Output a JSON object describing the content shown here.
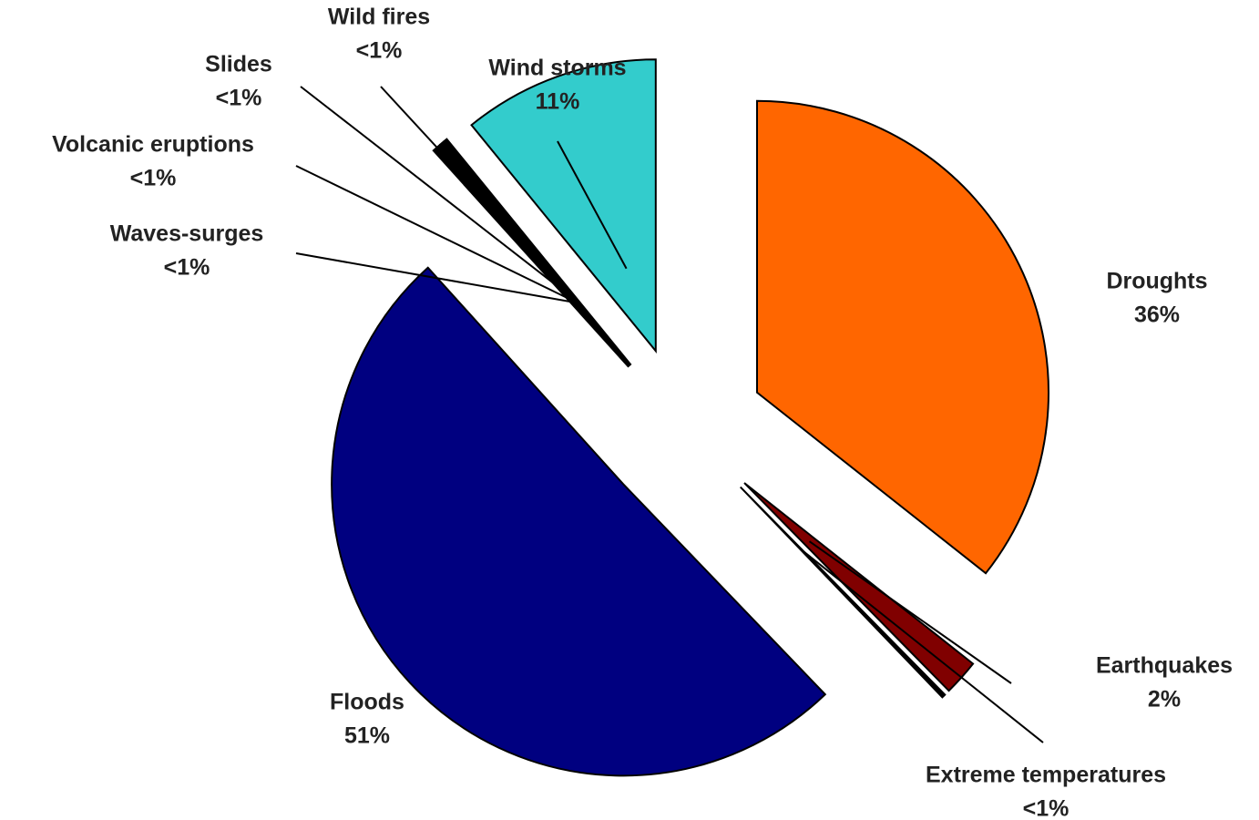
{
  "chart_data": {
    "type": "pie",
    "categories": [
      "Droughts",
      "Earthquakes",
      "Extreme temperatures",
      "Floods",
      "Waves-surges",
      "Volcanic eruptions",
      "Slides",
      "Wild fires",
      "Wind storms"
    ],
    "values": [
      36,
      2,
      0.2,
      51,
      0.2,
      0.2,
      0.2,
      0.2,
      11
    ],
    "value_labels": [
      "36%",
      "2%",
      "<1%",
      "51%",
      "<1%",
      "<1%",
      "<1%",
      "<1%",
      "11%"
    ],
    "colors": [
      "#ff6600",
      "#800000",
      "#000000",
      "#000080",
      "#000000",
      "#000000",
      "#000000",
      "#000000",
      "#33cccc"
    ]
  }
}
